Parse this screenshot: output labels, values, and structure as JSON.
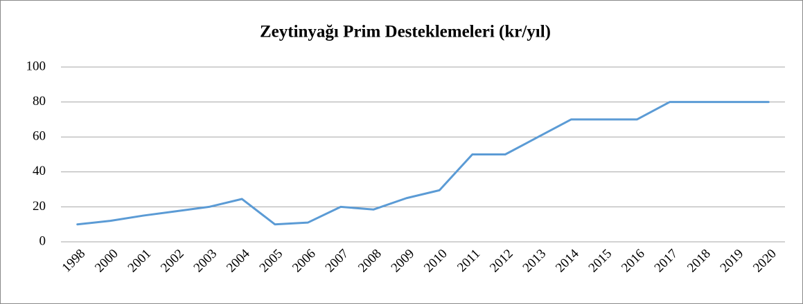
{
  "chart_data": {
    "type": "line",
    "title": "Zeytinyağı Prim Desteklemeleri (kr/yıl)",
    "categories": [
      "1998",
      "2000",
      "2001",
      "2002",
      "2003",
      "2004",
      "2005",
      "2006",
      "2007",
      "2008",
      "2009",
      "2010",
      "2011",
      "2012",
      "2013",
      "2014",
      "2015",
      "2016",
      "2017",
      "2018",
      "2019",
      "2020"
    ],
    "series": [
      {
        "name": "Zeytinyağı Prim Desteklemeleri",
        "color": "#5b9bd5",
        "values": [
          10,
          12,
          15,
          17.5,
          20,
          24.5,
          10,
          11,
          20,
          18.5,
          25,
          29.5,
          50,
          50,
          60,
          70,
          70,
          70,
          80,
          80,
          80,
          80
        ]
      }
    ],
    "ylim": [
      0,
      100
    ],
    "yticks": [
      0,
      20,
      40,
      60,
      80,
      100
    ],
    "grid": true
  }
}
